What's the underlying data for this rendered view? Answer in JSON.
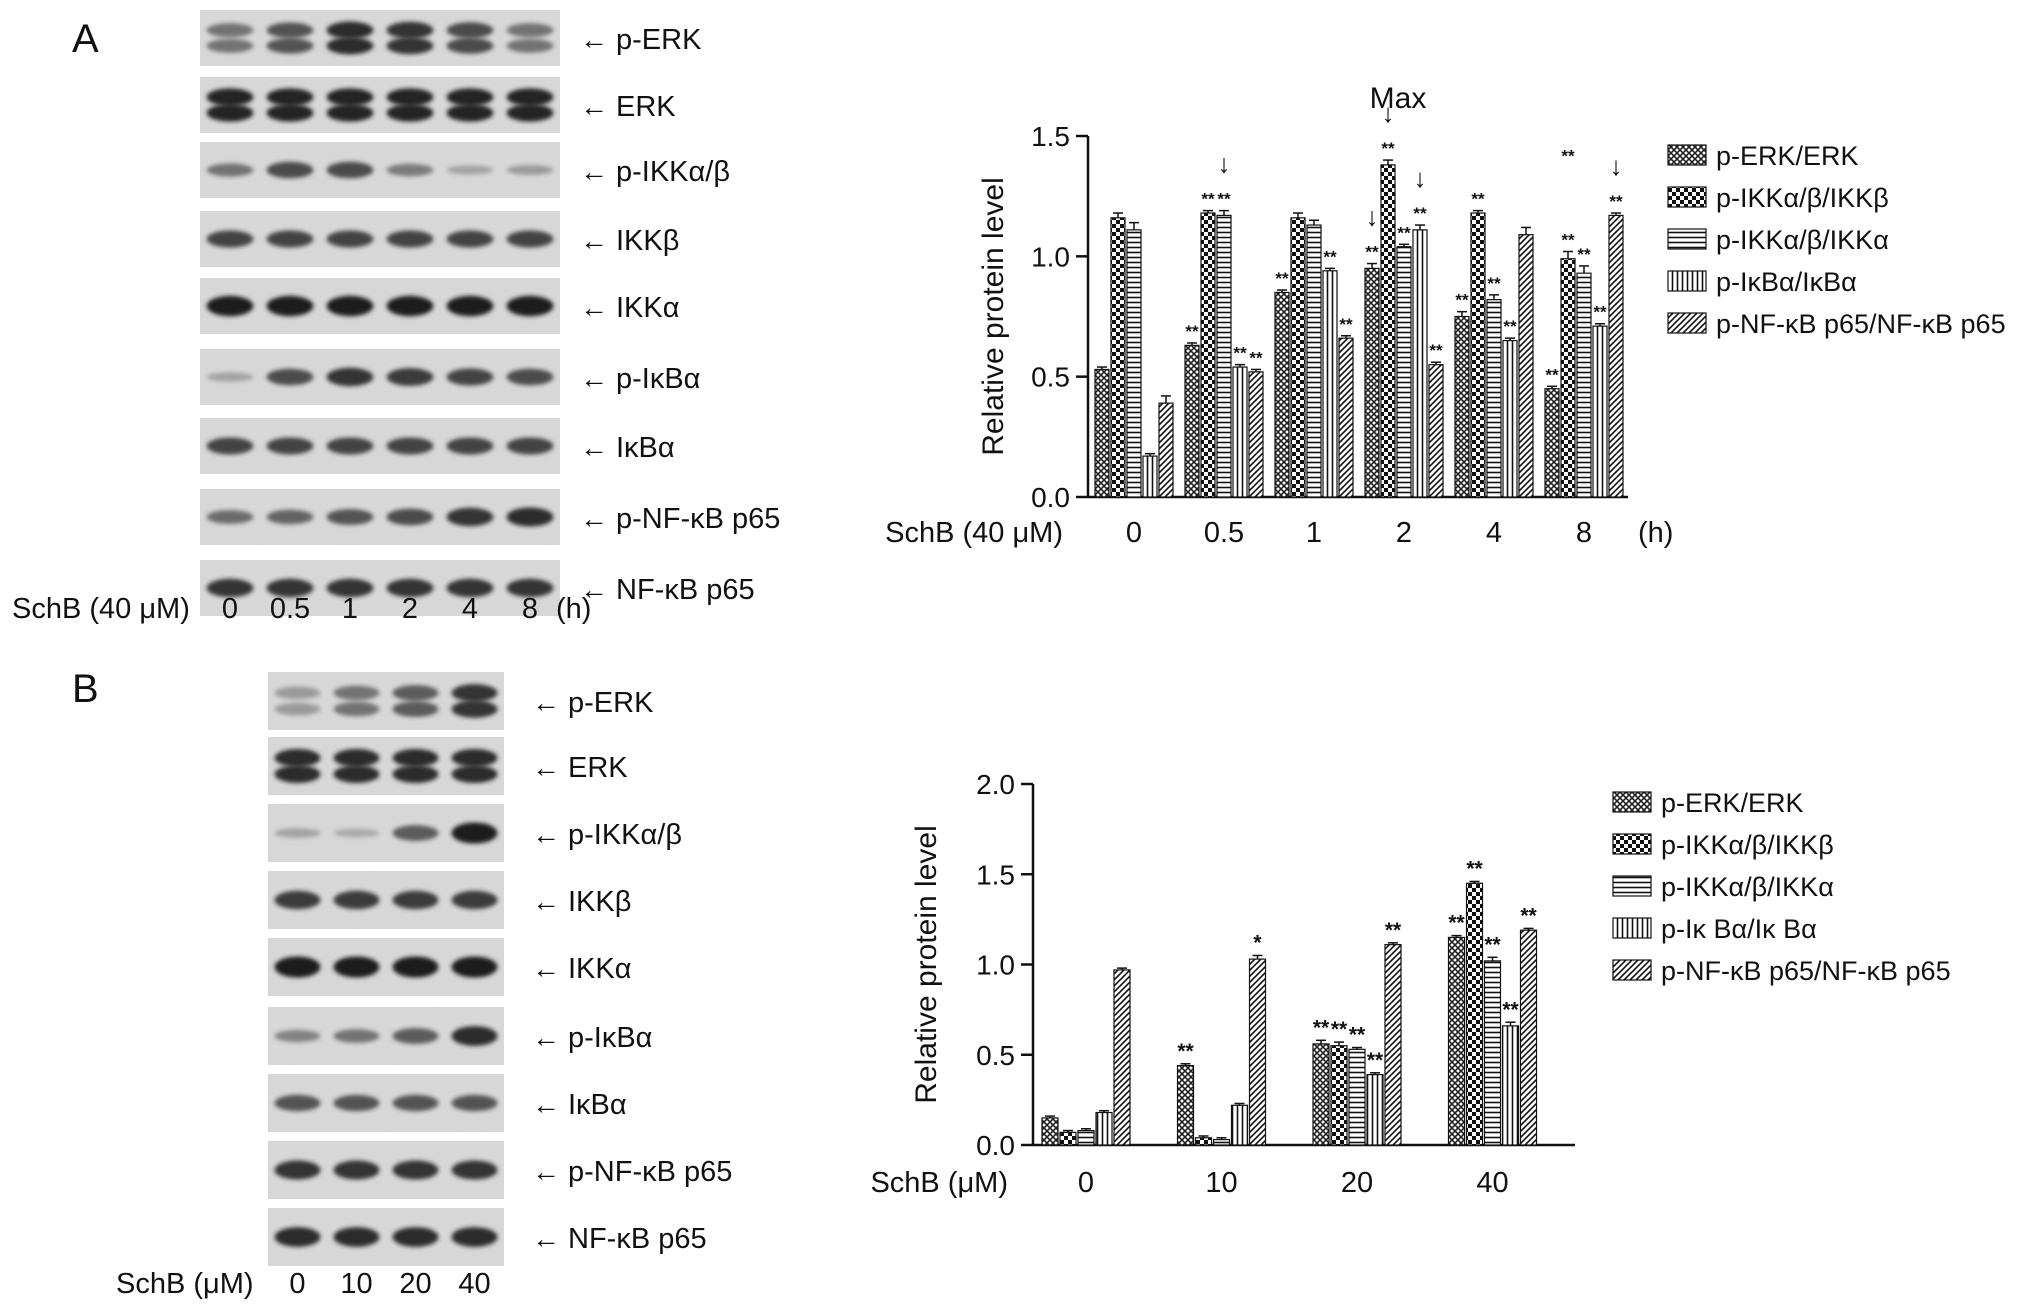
{
  "panels": [
    {
      "id": "A",
      "label": "A",
      "blot": {
        "proteins": [
          "p-ERK",
          "ERK",
          "p-IKKα/β",
          "IKKβ",
          "IKKα",
          "p-IκBα",
          "IκBα",
          "p-NF-κB p65",
          "NF-κB p65"
        ],
        "condition_label": "SchB (40 μM)",
        "lanes": [
          "0",
          "0.5",
          "1",
          "2",
          "4",
          "8"
        ],
        "unit": "(h)"
      },
      "max_label": "Max"
    },
    {
      "id": "B",
      "label": "B",
      "blot": {
        "proteins": [
          "p-ERK",
          "ERK",
          "p-IKKα/β",
          "IKKβ",
          "IKKα",
          "p-IκBα",
          "IκBα",
          "p-NF-κB p65",
          "NF-κB p65"
        ],
        "condition_label": "SchB (μM)",
        "lanes": [
          "0",
          "10",
          "20",
          "40"
        ],
        "unit": ""
      }
    }
  ],
  "colors": {
    "ink": "#111111",
    "blot_bg": "#dcdcdc",
    "band": "#222222"
  },
  "chart_data": [
    {
      "type": "bar",
      "panel": "A",
      "ylabel": "Relative protein level",
      "xlabel": "SchB (40 μM)",
      "x_unit": "(h)",
      "categories": [
        "0",
        "0.5",
        "1",
        "2",
        "4",
        "8"
      ],
      "ylim": [
        0,
        1.5
      ],
      "yticks": [
        "0.0",
        "0.5",
        "1.0",
        "1.5"
      ],
      "series": [
        {
          "name": "p-ERK/ERK",
          "pattern": "crosshatch",
          "values": [
            0.53,
            0.63,
            0.85,
            0.95,
            0.75,
            0.45
          ],
          "errors": [
            0.01,
            0.01,
            0.01,
            0.02,
            0.02,
            0.01
          ],
          "sig": [
            "",
            "**",
            "**",
            "**",
            "**",
            "**"
          ]
        },
        {
          "name": "p-IKKα/β/IKKβ",
          "pattern": "checker",
          "values": [
            1.16,
            1.18,
            1.16,
            1.38,
            1.18,
            0.99
          ],
          "errors": [
            0.02,
            0.01,
            0.02,
            0.02,
            0.01,
            0.03
          ],
          "sig": [
            "",
            "**",
            "",
            "**",
            "**",
            "**"
          ]
        },
        {
          "name": "p-IKKα/β/IKKα",
          "pattern": "hlines",
          "values": [
            1.11,
            1.17,
            1.13,
            1.04,
            0.82,
            0.93
          ],
          "errors": [
            0.03,
            0.02,
            0.02,
            0.01,
            0.02,
            0.03
          ],
          "sig": [
            "",
            "**",
            "",
            "**",
            "**",
            "**"
          ]
        },
        {
          "name": "p-IκBα/IκBα",
          "pattern": "vlines",
          "values": [
            0.17,
            0.54,
            0.94,
            1.11,
            0.65,
            0.71
          ],
          "errors": [
            0.01,
            0.01,
            0.01,
            0.02,
            0.01,
            0.01
          ],
          "sig": [
            "",
            "**",
            "**",
            "**",
            "**",
            "**"
          ]
        },
        {
          "name": "p-NF-κB p65/NF-κB p65",
          "pattern": "diag",
          "values": [
            0.39,
            0.52,
            0.66,
            0.55,
            1.09,
            1.17
          ],
          "errors": [
            0.03,
            0.01,
            0.01,
            0.01,
            0.03,
            0.01
          ],
          "sig": [
            "",
            "**",
            "**",
            "**",
            "",
            "**"
          ]
        }
      ],
      "annotations": [
        {
          "category": "0.5",
          "series": 2,
          "text": "↓"
        },
        {
          "category": "2",
          "series": 0,
          "text": "↓"
        },
        {
          "category": "2",
          "series": 1,
          "text": "↓"
        },
        {
          "category": "2",
          "series": 3,
          "text": "↓"
        },
        {
          "category": "8",
          "series": 4,
          "text": "↓"
        },
        {
          "category": "8",
          "series": 1,
          "text": "**",
          "float": true
        }
      ],
      "legend_position": "right"
    },
    {
      "type": "bar",
      "panel": "B",
      "ylabel": "Relative protein level",
      "xlabel": "SchB (μM)",
      "x_unit": "",
      "categories": [
        "0",
        "10",
        "20",
        "40"
      ],
      "ylim": [
        0,
        2.0
      ],
      "yticks": [
        "0.0",
        "0.5",
        "1.0",
        "1.5",
        "2.0"
      ],
      "series": [
        {
          "name": "p-ERK/ERK",
          "pattern": "crosshatch",
          "values": [
            0.15,
            0.44,
            0.56,
            1.15
          ],
          "errors": [
            0.01,
            0.01,
            0.02,
            0.01
          ],
          "sig": [
            "",
            "**",
            "**",
            "**"
          ]
        },
        {
          "name": "p-IKKα/β/IKKβ",
          "pattern": "checker",
          "values": [
            0.07,
            0.04,
            0.55,
            1.45
          ],
          "errors": [
            0.01,
            0.01,
            0.02,
            0.01
          ],
          "sig": [
            "",
            "",
            "**",
            "**"
          ]
        },
        {
          "name": "p-IKKα/β/IKKα",
          "pattern": "hlines",
          "values": [
            0.08,
            0.03,
            0.53,
            1.02
          ],
          "errors": [
            0.01,
            0.01,
            0.01,
            0.02
          ],
          "sig": [
            "",
            "",
            "**",
            "**"
          ]
        },
        {
          "name": "p-Iκ Bα/Iκ Bα",
          "pattern": "vlines",
          "values": [
            0.18,
            0.22,
            0.39,
            0.66
          ],
          "errors": [
            0.01,
            0.01,
            0.01,
            0.02
          ],
          "sig": [
            "",
            "",
            "**",
            "**"
          ]
        },
        {
          "name": "p-NF-κB p65/NF-κB p65",
          "pattern": "diag",
          "values": [
            0.97,
            1.03,
            1.11,
            1.19
          ],
          "errors": [
            0.01,
            0.02,
            0.01,
            0.01
          ],
          "sig": [
            "",
            "*",
            "**",
            "**"
          ]
        }
      ],
      "legend_position": "right"
    }
  ],
  "blot_intensity": {
    "A": [
      [
        0.45,
        0.65,
        0.9,
        0.85,
        0.7,
        0.45
      ],
      [
        0.95,
        0.95,
        0.95,
        0.95,
        0.95,
        0.95
      ],
      [
        0.45,
        0.7,
        0.7,
        0.4,
        0.15,
        0.2
      ],
      [
        0.75,
        0.75,
        0.75,
        0.75,
        0.75,
        0.75
      ],
      [
        1.0,
        1.0,
        1.0,
        1.0,
        1.0,
        1.0
      ],
      [
        0.15,
        0.7,
        0.85,
        0.8,
        0.75,
        0.7
      ],
      [
        0.75,
        0.75,
        0.75,
        0.75,
        0.75,
        0.75
      ],
      [
        0.5,
        0.55,
        0.65,
        0.7,
        0.85,
        0.9
      ],
      [
        0.85,
        0.85,
        0.85,
        0.85,
        0.85,
        0.85
      ]
    ],
    "B": [
      [
        0.2,
        0.45,
        0.6,
        0.85
      ],
      [
        0.9,
        0.9,
        0.9,
        0.9
      ],
      [
        0.15,
        0.1,
        0.6,
        1.0
      ],
      [
        0.8,
        0.8,
        0.8,
        0.8
      ],
      [
        1.0,
        1.0,
        1.0,
        1.0
      ],
      [
        0.35,
        0.45,
        0.6,
        0.9
      ],
      [
        0.65,
        0.65,
        0.65,
        0.65
      ],
      [
        0.85,
        0.85,
        0.85,
        0.85
      ],
      [
        0.9,
        0.9,
        0.9,
        0.9
      ]
    ]
  }
}
